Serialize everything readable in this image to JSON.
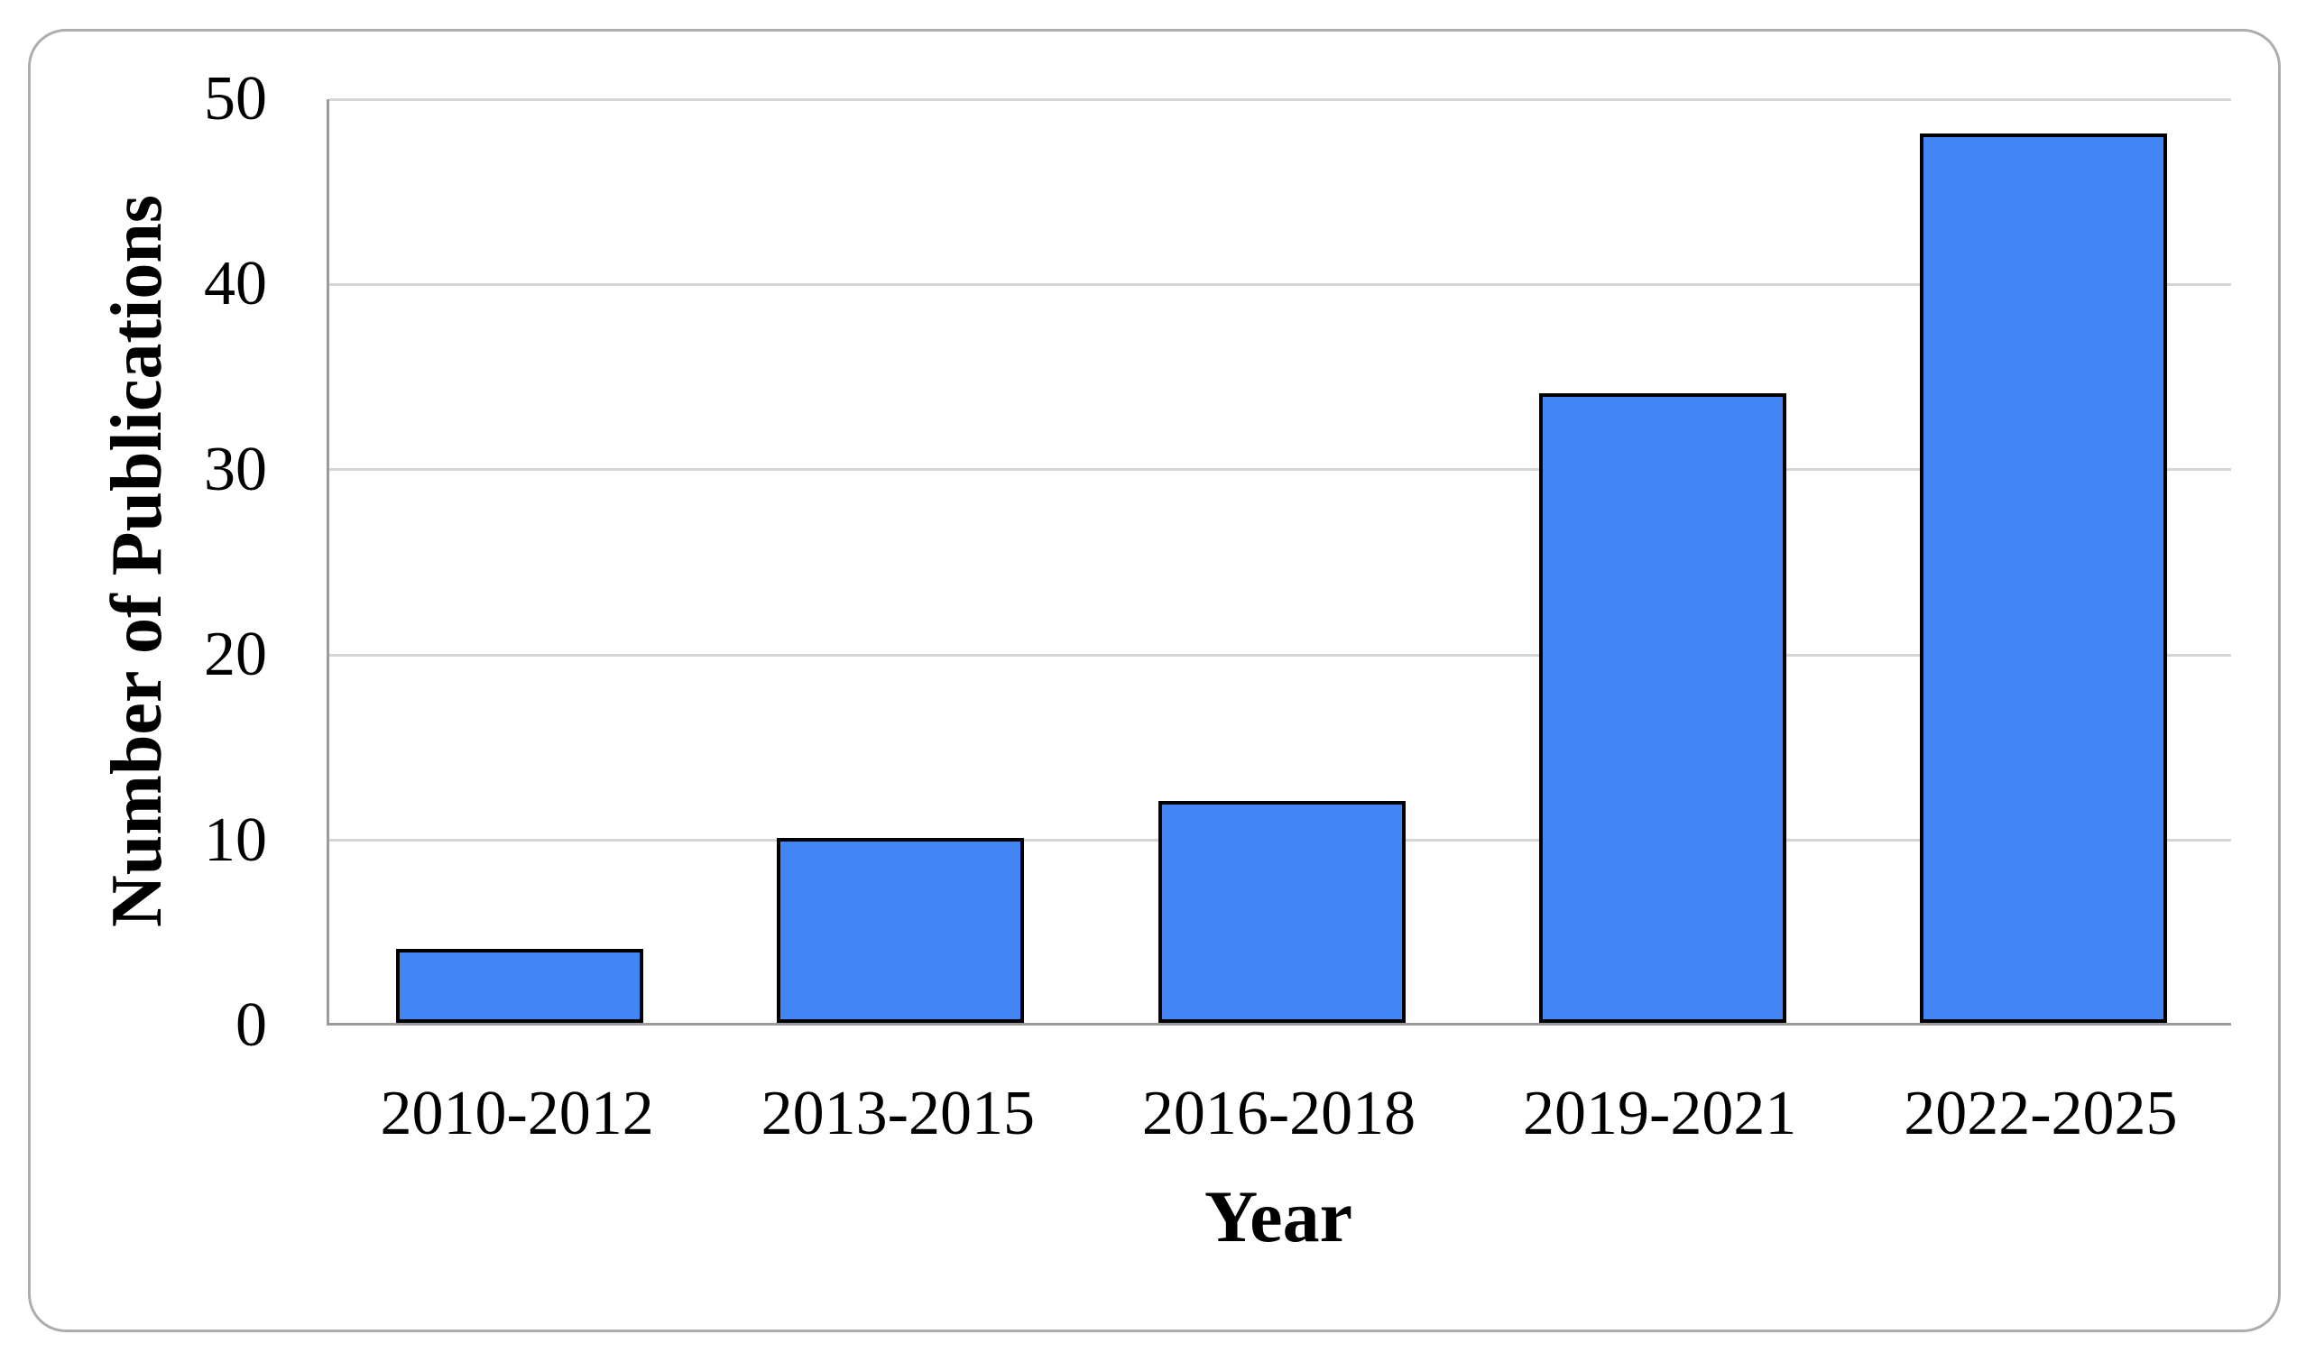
{
  "colors": {
    "bar_fill": "#4285F4",
    "bar_border": "#000000",
    "gridline": "#D5D5D5",
    "axis_line": "#9B9B9B",
    "frame_border": "#ADADAD",
    "text": "#000000",
    "background": "#FFFFFF"
  },
  "chart_data": {
    "type": "bar",
    "categories": [
      "2010-2012",
      "2013-2015",
      "2016-2018",
      "2019-2021",
      "2022-2025"
    ],
    "values": [
      4,
      10,
      12,
      34,
      48
    ],
    "title": "",
    "xlabel": "Year",
    "ylabel": "Number of Publications",
    "ylim": [
      0,
      50
    ],
    "yticks": [
      0,
      10,
      20,
      30,
      40,
      50
    ],
    "grid": "horizontal",
    "legend": "none"
  }
}
